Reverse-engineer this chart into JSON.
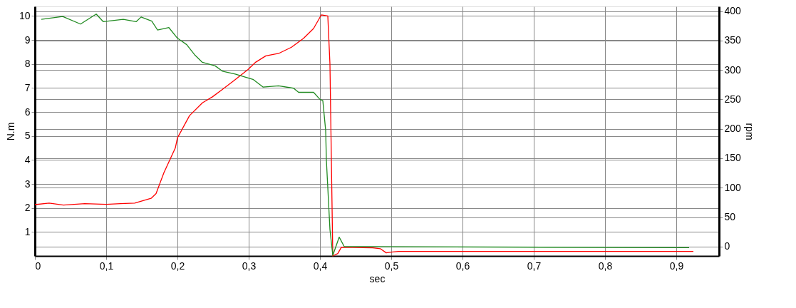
{
  "chart_data": {
    "type": "line",
    "xlabel": "sec",
    "ylabel": "N.m",
    "y2label": "rpm",
    "xlim": [
      0,
      0.96
    ],
    "xticks": [
      0,
      {
        "value": 0.1,
        "label": "0,1"
      },
      {
        "value": 0.2,
        "label": "0,2"
      },
      {
        "value": 0.3,
        "label": "0,3"
      },
      {
        "value": 0.4,
        "label": "0,4"
      },
      {
        "value": 0.5,
        "label": "0,5"
      },
      {
        "value": 0.6,
        "label": "0,6"
      },
      {
        "value": 0.7,
        "label": "0,7"
      },
      {
        "value": 0.8,
        "label": "0,8"
      },
      {
        "value": 0.9,
        "label": "0,9"
      }
    ],
    "ylim": [
      0,
      10.4
    ],
    "yticks": [
      1,
      2,
      3,
      4,
      5,
      6,
      7,
      8,
      9,
      10
    ],
    "y2lim": [
      -16,
      408
    ],
    "y2ticks": [
      0,
      50,
      100,
      150,
      200,
      250,
      300,
      350,
      400
    ],
    "grid": true,
    "series": [
      {
        "color": "#ff0000",
        "x": [
          0.0,
          0.02,
          0.04,
          0.07,
          0.1,
          0.12,
          0.14,
          0.163,
          0.17,
          0.181,
          0.197,
          0.2,
          0.217,
          0.235,
          0.249,
          0.263,
          0.281,
          0.299,
          0.31,
          0.324,
          0.342,
          0.36,
          0.377,
          0.391,
          0.402,
          0.411,
          0.414,
          0.418,
          0.425,
          0.43,
          0.474,
          0.485,
          0.493,
          0.5,
          0.51,
          0.924
        ],
        "values": [
          2.14,
          2.2,
          2.12,
          2.18,
          2.15,
          2.18,
          2.2,
          2.4,
          2.6,
          3.47,
          4.5,
          4.92,
          5.85,
          6.38,
          6.63,
          6.94,
          7.35,
          7.77,
          8.08,
          8.34,
          8.44,
          8.7,
          9.07,
          9.48,
          10.05,
          10.0,
          8.0,
          0.0,
          0.1,
          0.36,
          0.34,
          0.3,
          0.13,
          0.16,
          0.19,
          0.19
        ]
      },
      {
        "color": "#228b22",
        "axis": "y2",
        "x": [
          0.009,
          0.039,
          0.064,
          0.086,
          0.096,
          0.124,
          0.142,
          0.149,
          0.164,
          0.172,
          0.188,
          0.2,
          0.213,
          0.224,
          0.235,
          0.253,
          0.263,
          0.281,
          0.295,
          0.306,
          0.32,
          0.342,
          0.363,
          0.37,
          0.391,
          0.4,
          0.404,
          0.408,
          0.409,
          0.414,
          0.418,
          0.427,
          0.434,
          0.918
        ],
        "values": [
          386,
          391,
          378,
          395,
          382,
          386,
          382,
          390,
          383,
          368,
          372,
          354,
          343,
          326,
          313,
          307,
          298,
          293,
          288,
          284,
          271,
          273,
          269,
          262,
          262,
          250,
          248,
          197,
          147,
          29,
          -15,
          16,
          0,
          -2
        ]
      }
    ]
  }
}
